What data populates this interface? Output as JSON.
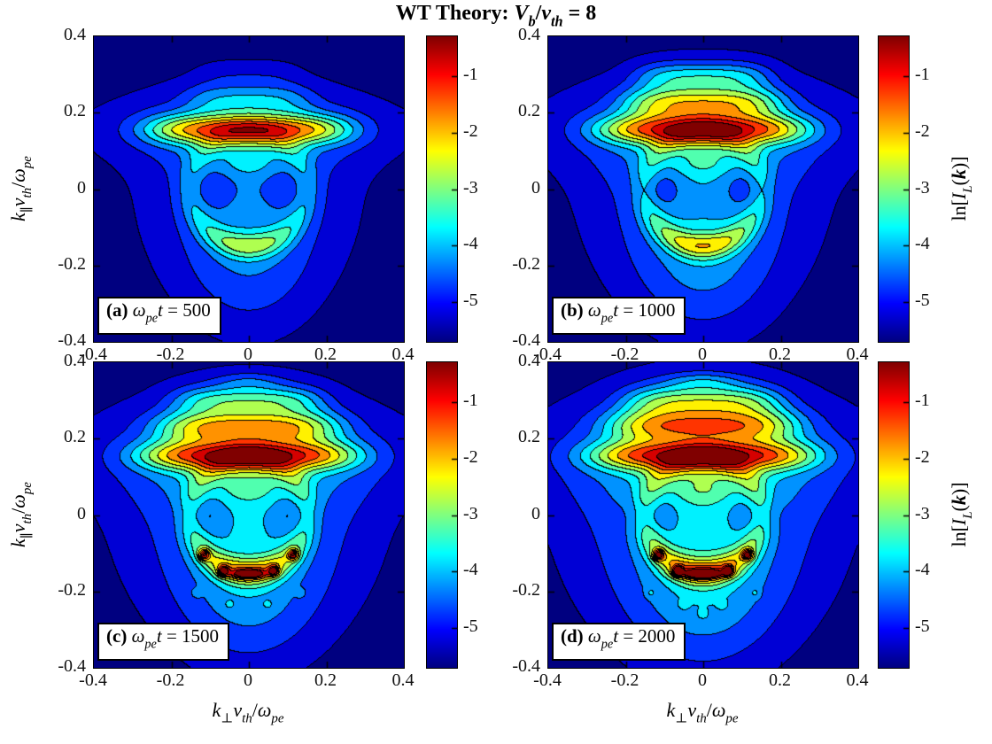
{
  "title": {
    "text": "WT Theory: V_b/v_th = 8",
    "tokens": [
      {
        "t": "WT Theory: ",
        "s": "b"
      },
      {
        "t": "V",
        "s": "bi"
      },
      {
        "t": "b",
        "s": "bsub"
      },
      {
        "t": "/",
        "s": "b"
      },
      {
        "t": "v",
        "s": "bi"
      },
      {
        "t": "th",
        "s": "bsub"
      },
      {
        "t": " = 8",
        "s": "b"
      }
    ]
  },
  "axes": {
    "x": {
      "label_text": "k_⊥ v_th / ω_pe",
      "label_tokens": [
        {
          "t": "k",
          "s": "i"
        },
        {
          "t": "⊥",
          "s": "subs"
        },
        {
          "t": "v",
          "s": "i"
        },
        {
          "t": "th",
          "s": "sub"
        },
        {
          "t": "/",
          "s": "n"
        },
        {
          "t": "ω",
          "s": "i"
        },
        {
          "t": "pe",
          "s": "sub"
        }
      ],
      "min": -0.4,
      "max": 0.4,
      "ticks": [
        -0.4,
        -0.2,
        0,
        0.2,
        0.4
      ],
      "tick_labels": [
        "-0.4",
        "-0.2",
        "0",
        "0.2",
        "0.4"
      ]
    },
    "y": {
      "label_text": "k_∥ v_th / ω_pe",
      "label_tokens": [
        {
          "t": "k",
          "s": "i"
        },
        {
          "t": "∥",
          "s": "subs"
        },
        {
          "t": "v",
          "s": "i"
        },
        {
          "t": "th",
          "s": "sub"
        },
        {
          "t": "/",
          "s": "n"
        },
        {
          "t": "ω",
          "s": "i"
        },
        {
          "t": "pe",
          "s": "sub"
        }
      ],
      "min": -0.4,
      "max": 0.4,
      "ticks": [
        0.4,
        0.2,
        0,
        -0.2,
        -0.4
      ],
      "tick_labels": [
        "0.4",
        "0.2",
        "0",
        "-0.2",
        "-0.4"
      ]
    }
  },
  "colorbar": {
    "label_text": "ln[I_L(k)]",
    "label_tokens": [
      {
        "t": "ln[",
        "s": "n"
      },
      {
        "t": "I",
        "s": "i"
      },
      {
        "t": "L",
        "s": "sub"
      },
      {
        "t": "(",
        "s": "n"
      },
      {
        "t": "k",
        "s": "bi"
      },
      {
        "t": ")]",
        "s": "n"
      }
    ],
    "min": -5.7,
    "max": -0.3,
    "ticks": [
      -1,
      -2,
      -3,
      -4,
      -5
    ],
    "tick_labels": [
      "-1",
      "-2",
      "-3",
      "-4",
      "-5"
    ],
    "colormap": "jet"
  },
  "chart_data": {
    "type": "heatmap",
    "subtype": "filled-contour",
    "colormap": "jet",
    "caxis": [
      -5.7,
      -0.3
    ],
    "levels": [
      -5.5,
      -5,
      -4.5,
      -4,
      -3.5,
      -3,
      -2.5,
      -2,
      -1.5,
      -1,
      -0.5
    ],
    "xlabel": "k_⊥ v_th / ω_pe",
    "ylabel": "k_∥ v_th / ω_pe",
    "zlabel": "ln[I_L(k)]",
    "xlim": [
      -0.4,
      0.4
    ],
    "ylim": [
      -0.4,
      0.4
    ],
    "panels": [
      {
        "id": "a",
        "time": 500,
        "time_label": "ω_pe t = 500",
        "label_tokens": [
          {
            "t": "(a) ",
            "s": "b"
          },
          {
            "t": "ω",
            "s": "i"
          },
          {
            "t": "pe",
            "s": "sub"
          },
          {
            "t": "t",
            "s": "i"
          },
          {
            "t": " = 500",
            "s": "n"
          }
        ],
        "peak": {
          "kperp": 0,
          "kpar": 0.15,
          "ln_I": -0.4
        },
        "field": {
          "base": -5.9,
          "components": [
            {
              "type": "renv",
              "amp": 1.3,
              "s": 0.27
            },
            {
              "type": "g",
              "amp": 0.9,
              "x": 0,
              "y": 0.16,
              "sx": 0.45,
              "sy": 0.1
            },
            {
              "type": "g",
              "amp": 0.75,
              "x": 0,
              "y": -0.22,
              "sx": 0.17,
              "sy": 0.19
            },
            {
              "type": "band",
              "amp": 2.95,
              "y": 0.155,
              "sy": 0.038,
              "sx": 0.26
            },
            {
              "type": "band",
              "amp": 0.9,
              "y": 0.235,
              "sy": 0.04,
              "sx": 0.16
            },
            {
              "type": "band",
              "amp": 0.3,
              "y": 0.3,
              "sy": 0.035,
              "sx": 0.13
            },
            {
              "type": "g",
              "amp": 0.45,
              "x": 0,
              "y": 0.065,
              "sx": 0.07,
              "sy": 0.035
            },
            {
              "type": "ring",
              "amp": 1.15,
              "r0": 0.15,
              "sr": 0.035,
              "a0": 0.62,
              "ab": 0.85,
              "as": 48
            },
            {
              "type": "g",
              "amp": -0.5,
              "x": -0.085,
              "y": 0,
              "sx": 0.05,
              "sy": 0.042
            },
            {
              "type": "g",
              "amp": -0.5,
              "x": 0.085,
              "y": 0,
              "sx": 0.05,
              "sy": 0.042
            }
          ]
        }
      },
      {
        "id": "b",
        "time": 1000,
        "time_label": "ω_pe t = 1000",
        "label_tokens": [
          {
            "t": "(b) ",
            "s": "b"
          },
          {
            "t": "ω",
            "s": "i"
          },
          {
            "t": "pe",
            "s": "sub"
          },
          {
            "t": "t",
            "s": "i"
          },
          {
            "t": " = 1000",
            "s": "n"
          }
        ],
        "peak": {
          "kperp": 0,
          "kpar": 0.16,
          "ln_I": -0.3
        },
        "field": {
          "base": -5.9,
          "components": [
            {
              "type": "renv",
              "amp": 1.5,
              "s": 0.29
            },
            {
              "type": "g",
              "amp": 0.95,
              "x": 0,
              "y": 0.16,
              "sx": 0.45,
              "sy": 0.12
            },
            {
              "type": "g",
              "amp": 0.8,
              "x": 0,
              "y": -0.22,
              "sx": 0.17,
              "sy": 0.19
            },
            {
              "type": "band",
              "amp": 3.1,
              "y": 0.155,
              "sy": 0.038,
              "sx": 0.27
            },
            {
              "type": "band",
              "amp": 2.3,
              "y": 0.225,
              "sy": 0.042,
              "sx": 0.2
            },
            {
              "type": "band",
              "amp": 1.45,
              "y": 0.295,
              "sy": 0.038,
              "sx": 0.17
            },
            {
              "type": "g",
              "amp": 0.5,
              "x": 0,
              "y": 0.065,
              "sx": 0.07,
              "sy": 0.035
            },
            {
              "type": "ring",
              "amp": 1.3,
              "r0": 0.15,
              "sr": 0.035,
              "a0": 0.66,
              "ab": 0.95,
              "as": 48
            },
            {
              "type": "g",
              "amp": -0.6,
              "x": -0.11,
              "y": 0,
              "sx": 0.06,
              "sy": 0.05
            },
            {
              "type": "g",
              "amp": -0.6,
              "x": 0.11,
              "y": 0,
              "sx": 0.06,
              "sy": 0.05
            }
          ]
        }
      },
      {
        "id": "c",
        "time": 1500,
        "time_label": "ω_pe t = 1500",
        "label_tokens": [
          {
            "t": "(c) ",
            "s": "b"
          },
          {
            "t": "ω",
            "s": "i"
          },
          {
            "t": "pe",
            "s": "sub"
          },
          {
            "t": "t",
            "s": "i"
          },
          {
            "t": " = 1500",
            "s": "n"
          }
        ],
        "peak": {
          "kperp": 0,
          "kpar": 0.16,
          "ln_I": -0.3
        },
        "field": {
          "base": -5.9,
          "components": [
            {
              "type": "renv",
              "amp": 1.6,
              "s": 0.31
            },
            {
              "type": "g",
              "amp": 1.0,
              "x": 0,
              "y": 0.16,
              "sx": 0.45,
              "sy": 0.13
            },
            {
              "type": "g",
              "amp": 0.85,
              "x": 0,
              "y": -0.22,
              "sx": 0.17,
              "sy": 0.19
            },
            {
              "type": "band",
              "amp": 3.1,
              "y": 0.155,
              "sy": 0.038,
              "sx": 0.28
            },
            {
              "type": "band",
              "amp": 2.55,
              "y": 0.23,
              "sy": 0.042,
              "sx": 0.23
            },
            {
              "type": "band",
              "amp": 1.75,
              "y": 0.3,
              "sy": 0.038,
              "sx": 0.19
            },
            {
              "type": "g",
              "amp": 0.7,
              "x": 0,
              "y": 0.35,
              "sx": 0.09,
              "sy": 0.025
            },
            {
              "type": "g",
              "amp": 0.5,
              "x": 0,
              "y": 0.065,
              "sx": 0.07,
              "sy": 0.035
            },
            {
              "type": "ring",
              "amp": 1.4,
              "r0": 0.15,
              "sr": 0.035,
              "a0": 0.68,
              "ab": 1.0,
              "as": 48
            },
            {
              "type": "g",
              "amp": -0.6,
              "x": -0.12,
              "y": 0,
              "sx": 0.06,
              "sy": 0.05
            },
            {
              "type": "g",
              "amp": -0.6,
              "x": 0.12,
              "y": 0,
              "sx": 0.06,
              "sy": 0.05
            },
            {
              "type": "g",
              "amp": 2.5,
              "x": 0,
              "y": -0.155,
              "sx": 0.045,
              "sy": 0.012
            },
            {
              "type": "g",
              "amp": 2.5,
              "x": -0.065,
              "y": -0.147,
              "sx": 0.013,
              "sy": 0.013
            },
            {
              "type": "g",
              "amp": 2.5,
              "x": 0.065,
              "y": -0.147,
              "sx": 0.013,
              "sy": 0.013
            },
            {
              "type": "g",
              "amp": 2.5,
              "x": -0.115,
              "y": -0.105,
              "sx": 0.014,
              "sy": 0.014
            },
            {
              "type": "g",
              "amp": 2.5,
              "x": 0.115,
              "y": -0.105,
              "sx": 0.014,
              "sy": 0.014
            },
            {
              "type": "g",
              "amp": 0.45,
              "x": -0.05,
              "y": -0.235,
              "sx": 0.012,
              "sy": 0.012
            },
            {
              "type": "g",
              "amp": 0.45,
              "x": 0.05,
              "y": -0.235,
              "sx": 0.012,
              "sy": 0.012
            },
            {
              "type": "g",
              "amp": 0.45,
              "x": -0.135,
              "y": -0.205,
              "sx": 0.012,
              "sy": 0.012
            },
            {
              "type": "g",
              "amp": 0.45,
              "x": 0.135,
              "y": -0.205,
              "sx": 0.012,
              "sy": 0.012
            }
          ]
        }
      },
      {
        "id": "d",
        "time": 2000,
        "time_label": "ω_pe t = 2000",
        "label_tokens": [
          {
            "t": "(d) ",
            "s": "b"
          },
          {
            "t": "ω",
            "s": "i"
          },
          {
            "t": "pe",
            "s": "sub"
          },
          {
            "t": "t",
            "s": "i"
          },
          {
            "t": " = 2000",
            "s": "n"
          }
        ],
        "peak": {
          "kperp": 0,
          "kpar": 0.16,
          "ln_I": -0.3
        },
        "field": {
          "base": -5.9,
          "components": [
            {
              "type": "renv",
              "amp": 1.7,
              "s": 0.33
            },
            {
              "type": "g",
              "amp": 1.0,
              "x": 0,
              "y": 0.16,
              "sx": 0.45,
              "sy": 0.14
            },
            {
              "type": "g",
              "amp": 0.9,
              "x": 0,
              "y": -0.22,
              "sx": 0.18,
              "sy": 0.2
            },
            {
              "type": "band",
              "amp": 3.05,
              "y": 0.155,
              "sy": 0.038,
              "sx": 0.29
            },
            {
              "type": "band",
              "amp": 2.7,
              "y": 0.235,
              "sy": 0.044,
              "sx": 0.24
            },
            {
              "type": "band",
              "amp": 1.95,
              "y": 0.3,
              "sy": 0.04,
              "sx": 0.2
            },
            {
              "type": "g",
              "amp": 0.9,
              "x": 0,
              "y": 0.35,
              "sx": 0.1,
              "sy": 0.025
            },
            {
              "type": "g",
              "amp": 0.55,
              "x": 0,
              "y": 0.065,
              "sx": 0.07,
              "sy": 0.035
            },
            {
              "type": "ring",
              "amp": 1.45,
              "r0": 0.15,
              "sr": 0.035,
              "a0": 0.7,
              "ab": 1.05,
              "as": 48
            },
            {
              "type": "g",
              "amp": -0.65,
              "x": -0.13,
              "y": 0,
              "sx": 0.065,
              "sy": 0.05
            },
            {
              "type": "g",
              "amp": -0.65,
              "x": 0.13,
              "y": 0,
              "sx": 0.065,
              "sy": 0.05
            },
            {
              "type": "g",
              "amp": 2.7,
              "x": 0,
              "y": -0.155,
              "sx": 0.05,
              "sy": 0.012
            },
            {
              "type": "g",
              "amp": 2.7,
              "x": -0.065,
              "y": -0.147,
              "sx": 0.013,
              "sy": 0.013
            },
            {
              "type": "g",
              "amp": 2.7,
              "x": 0.065,
              "y": -0.147,
              "sx": 0.013,
              "sy": 0.013
            },
            {
              "type": "g",
              "amp": 2.7,
              "x": -0.115,
              "y": -0.105,
              "sx": 0.014,
              "sy": 0.014
            },
            {
              "type": "g",
              "amp": 2.7,
              "x": 0.115,
              "y": -0.105,
              "sx": 0.014,
              "sy": 0.014
            },
            {
              "type": "g",
              "amp": 0.5,
              "x": -0.05,
              "y": -0.235,
              "sx": 0.012,
              "sy": 0.012
            },
            {
              "type": "g",
              "amp": 0.5,
              "x": 0.05,
              "y": -0.235,
              "sx": 0.012,
              "sy": 0.012
            },
            {
              "type": "g",
              "amp": 0.5,
              "x": -0.135,
              "y": -0.205,
              "sx": 0.012,
              "sy": 0.012
            },
            {
              "type": "g",
              "amp": 0.5,
              "x": 0.135,
              "y": -0.205,
              "sx": 0.012,
              "sy": 0.012
            },
            {
              "type": "g",
              "amp": 0.5,
              "x": 0,
              "y": -0.26,
              "sx": 0.012,
              "sy": 0.012
            }
          ]
        }
      }
    ]
  }
}
